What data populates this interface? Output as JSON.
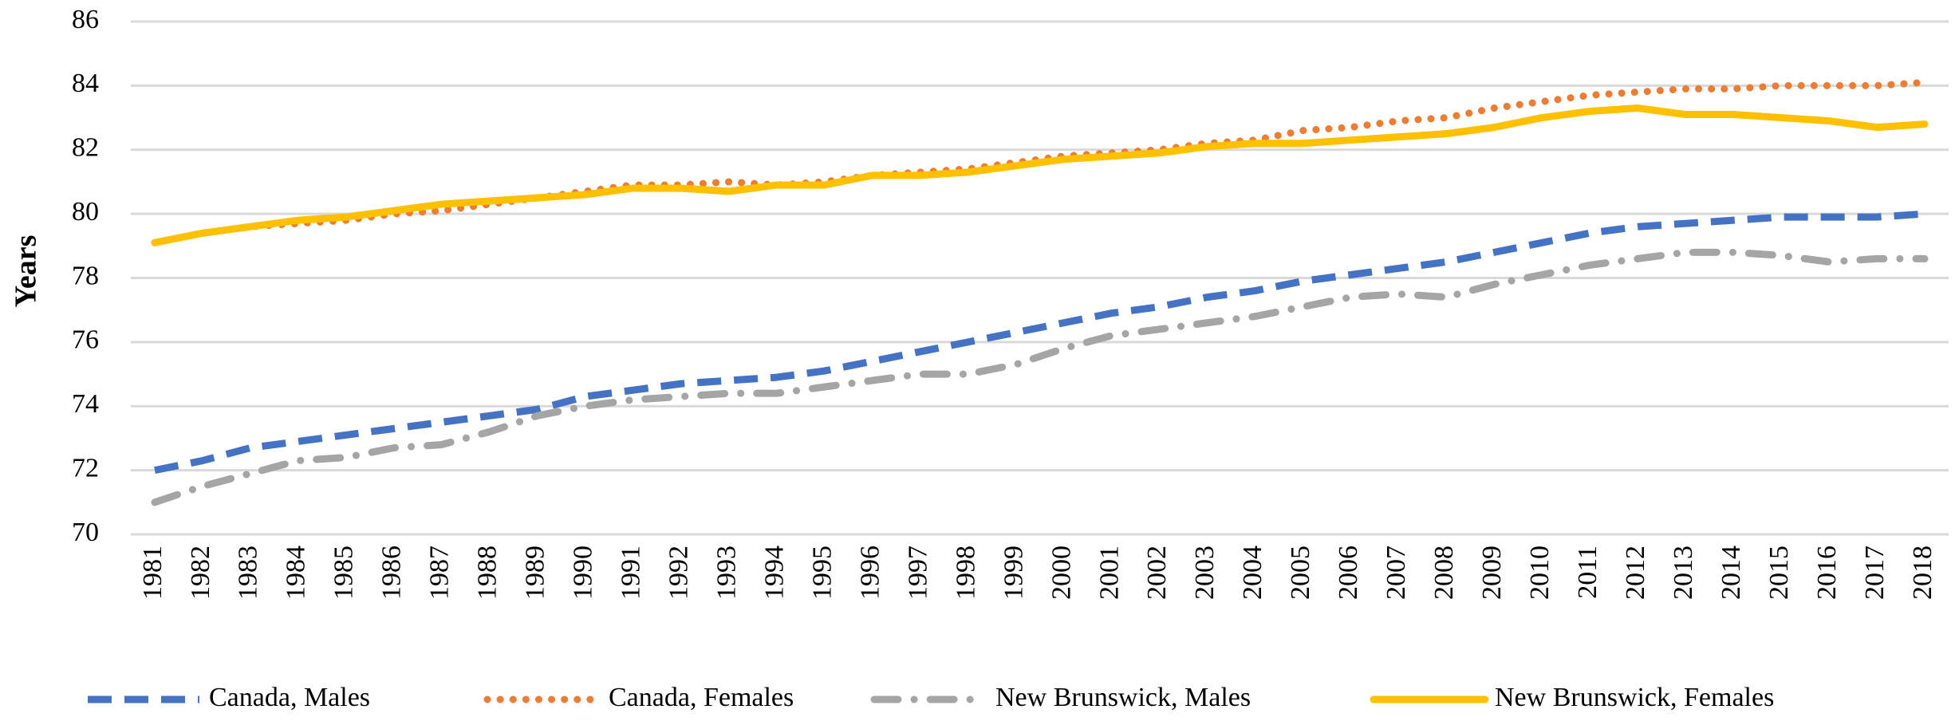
{
  "chart_data": {
    "type": "line",
    "y_label": "Years",
    "categories": [
      "1981",
      "1982",
      "1983",
      "1984",
      "1985",
      "1986",
      "1987",
      "1988",
      "1989",
      "1990",
      "1991",
      "1992",
      "1993",
      "1994",
      "1995",
      "1996",
      "1997",
      "1998",
      "1999",
      "2000",
      "2001",
      "2002",
      "2003",
      "2004",
      "2005",
      "2006",
      "2007",
      "2008",
      "2009",
      "2010",
      "2011",
      "2012",
      "2013",
      "2014",
      "2015",
      "2016",
      "2017",
      "2018"
    ],
    "series": [
      {
        "name": "Canada, Males",
        "color": "#4472c4",
        "linestyle": "dashed",
        "values": [
          72.0,
          72.3,
          72.7,
          72.9,
          73.1,
          73.3,
          73.5,
          73.7,
          73.9,
          74.3,
          74.5,
          74.7,
          74.8,
          74.9,
          75.1,
          75.4,
          75.7,
          76.0,
          76.3,
          76.6,
          76.9,
          77.1,
          77.4,
          77.6,
          77.9,
          78.1,
          78.3,
          78.5,
          78.8,
          79.1,
          79.4,
          79.6,
          79.7,
          79.8,
          79.9,
          79.9,
          79.9,
          80.0
        ]
      },
      {
        "name": "Canada, Females",
        "color": "#ed7d31",
        "linestyle": "dotted",
        "values": [
          79.1,
          79.4,
          79.6,
          79.7,
          79.8,
          80.0,
          80.1,
          80.3,
          80.5,
          80.7,
          80.9,
          80.9,
          81.0,
          80.9,
          81.0,
          81.2,
          81.3,
          81.4,
          81.6,
          81.8,
          81.9,
          82.0,
          82.2,
          82.3,
          82.6,
          82.7,
          82.9,
          83.0,
          83.3,
          83.5,
          83.7,
          83.8,
          83.9,
          83.9,
          84.0,
          84.0,
          84.0,
          84.1
        ]
      },
      {
        "name": "New Brunswick, Males",
        "color": "#a5a5a5",
        "linestyle": "dashdot",
        "values": [
          71.0,
          71.5,
          71.9,
          72.3,
          72.4,
          72.7,
          72.8,
          73.2,
          73.7,
          74.0,
          74.2,
          74.3,
          74.4,
          74.4,
          74.6,
          74.8,
          75.0,
          75.0,
          75.3,
          75.8,
          76.2,
          76.4,
          76.6,
          76.8,
          77.1,
          77.4,
          77.5,
          77.4,
          77.8,
          78.1,
          78.4,
          78.6,
          78.8,
          78.8,
          78.7,
          78.5,
          78.6,
          78.6
        ]
      },
      {
        "name": "New Brunswick, Females",
        "color": "#ffc000",
        "linestyle": "solid",
        "values": [
          79.1,
          79.4,
          79.6,
          79.8,
          79.9,
          80.1,
          80.3,
          80.4,
          80.5,
          80.6,
          80.8,
          80.8,
          80.7,
          80.9,
          80.9,
          81.2,
          81.2,
          81.3,
          81.5,
          81.7,
          81.8,
          81.9,
          82.1,
          82.2,
          82.2,
          82.3,
          82.4,
          82.5,
          82.7,
          83.0,
          83.2,
          83.3,
          83.1,
          83.1,
          83.0,
          82.9,
          82.7,
          82.8
        ]
      }
    ],
    "ylim": [
      70,
      86
    ],
    "yticks": [
      70,
      72,
      74,
      76,
      78,
      80,
      82,
      84,
      86
    ],
    "grid": true,
    "legend": "bottom"
  }
}
